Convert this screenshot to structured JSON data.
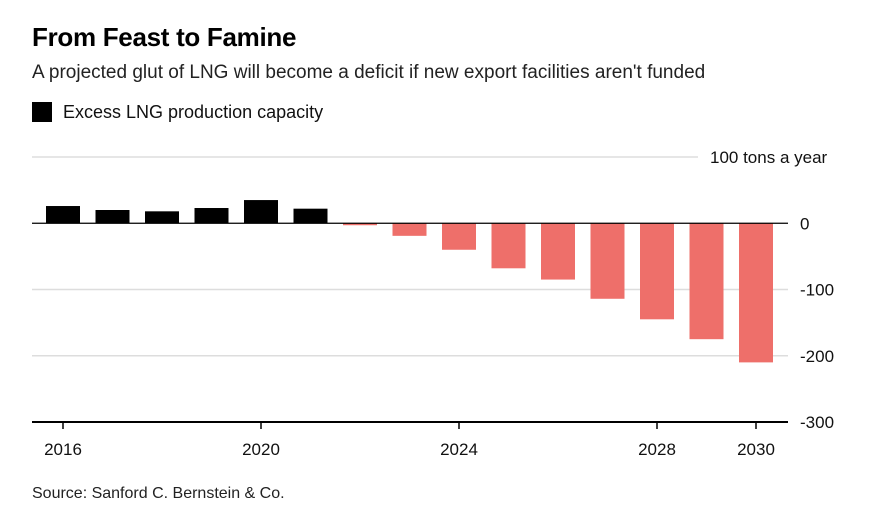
{
  "chart_data": {
    "type": "bar",
    "title": "From Feast to Famine",
    "subtitle": "A projected glut of LNG will become a deficit if new export facilities aren't funded",
    "series": [
      {
        "name": "Excess LNG production capacity",
        "x": [
          2016,
          2017,
          2018,
          2019,
          2020,
          2021,
          2022,
          2023,
          2024,
          2025,
          2026,
          2027,
          2028,
          2029,
          2030
        ],
        "values": [
          26,
          20,
          18,
          23,
          35,
          22,
          -3,
          -19,
          -40,
          -68,
          -85,
          -114,
          -145,
          -175,
          -210
        ]
      }
    ],
    "ylabel": "100 tons a year",
    "ylim": [
      -300,
      100
    ],
    "yticks": [
      100,
      0,
      -100,
      -200,
      -300
    ],
    "ytick_labels": [
      "",
      "0",
      "-100",
      "-200",
      "-300"
    ],
    "xticks": [
      2016,
      2020,
      2024,
      2028,
      2030
    ],
    "xtick_labels": [
      "2016",
      "2020",
      "2024",
      "2028",
      "2030"
    ],
    "grid": true,
    "legend": "top-left",
    "source": "Source: Sanford C. Bernstein & Co."
  },
  "colors": {
    "positive": "#000000",
    "negative": "#ee6f6a",
    "grid": "#dddddd",
    "axis": "#000000"
  }
}
